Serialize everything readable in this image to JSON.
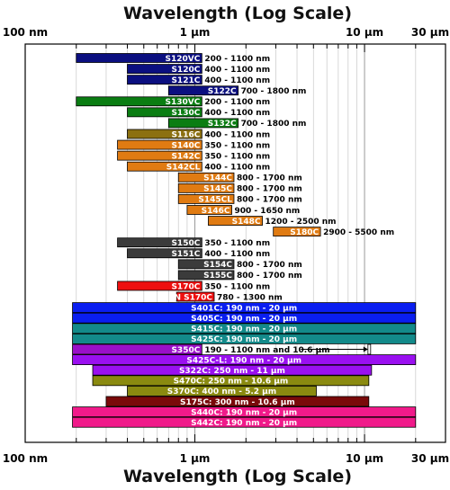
{
  "chart_data": {
    "type": "bar",
    "orientation": "horizontal-range",
    "title": "Wavelength (Log Scale)",
    "xlabel": "Wavelength (Log Scale)",
    "x_scale": "log",
    "x_unit": "nm",
    "xlim": [
      100,
      30000
    ],
    "ticks": [
      {
        "value": 100,
        "label": "100 nm"
      },
      {
        "value": 1000,
        "label": "1 µm"
      },
      {
        "value": 10000,
        "label": "10 µm"
      },
      {
        "value": 30000,
        "label": "30 µm"
      }
    ],
    "bars": [
      {
        "name": "S120VC",
        "range_label": "200 - 1100 nm",
        "min": 200,
        "max": 1100,
        "color": "#0b0f80",
        "label_inside": false
      },
      {
        "name": "S120C",
        "range_label": "400 - 1100 nm",
        "min": 400,
        "max": 1100,
        "color": "#0b0f80",
        "label_inside": false
      },
      {
        "name": "S121C",
        "range_label": "400 - 1100 nm",
        "min": 400,
        "max": 1100,
        "color": "#0b0f80",
        "label_inside": false
      },
      {
        "name": "S122C",
        "range_label": "700 - 1800 nm",
        "min": 700,
        "max": 1800,
        "color": "#0b0f80",
        "label_inside": false
      },
      {
        "name": "S130VC",
        "range_label": "200 - 1100 nm",
        "min": 200,
        "max": 1100,
        "color": "#0a7d12",
        "label_inside": false
      },
      {
        "name": "S130C",
        "range_label": "400 - 1100 nm",
        "min": 400,
        "max": 1100,
        "color": "#0a7d12",
        "label_inside": false
      },
      {
        "name": "S132C",
        "range_label": "700 - 1800 nm",
        "min": 700,
        "max": 1800,
        "color": "#0a7d12",
        "label_inside": false
      },
      {
        "name": "S116C",
        "range_label": "400 - 1100 nm",
        "min": 400,
        "max": 1100,
        "color": "#8c7010",
        "label_inside": false
      },
      {
        "name": "S140C",
        "range_label": "350 - 1100 nm",
        "min": 350,
        "max": 1100,
        "color": "#e07b12",
        "label_inside": false
      },
      {
        "name": "S142C",
        "range_label": "350 - 1100 nm",
        "min": 350,
        "max": 1100,
        "color": "#e07b12",
        "label_inside": false
      },
      {
        "name": "S142CL",
        "range_label": "400 - 1100 nm",
        "min": 400,
        "max": 1100,
        "color": "#e07b12",
        "label_inside": false
      },
      {
        "name": "S144C",
        "range_label": "800 - 1700 nm",
        "min": 800,
        "max": 1700,
        "color": "#e07b12",
        "label_inside": false
      },
      {
        "name": "S145C",
        "range_label": "800 - 1700 nm",
        "min": 800,
        "max": 1700,
        "color": "#e07b12",
        "label_inside": false
      },
      {
        "name": "S145CL",
        "range_label": "800 - 1700 nm",
        "min": 800,
        "max": 1700,
        "color": "#e07b12",
        "label_inside": false
      },
      {
        "name": "S146C",
        "range_label": "900 - 1650 nm",
        "min": 900,
        "max": 1650,
        "color": "#e07b12",
        "label_inside": false
      },
      {
        "name": "S148C",
        "range_label": "1200 - 2500 nm",
        "min": 1200,
        "max": 2500,
        "color": "#e07b12",
        "label_inside": false
      },
      {
        "name": "S180C",
        "range_label": "2900 - 5500 nm",
        "min": 2900,
        "max": 5500,
        "color": "#e07b12",
        "label_inside": false
      },
      {
        "name": "S150C",
        "range_label": "350 - 1100 nm",
        "min": 350,
        "max": 1100,
        "color": "#3b3b3b",
        "label_inside": false
      },
      {
        "name": "S151C",
        "range_label": "400 - 1100 nm",
        "min": 400,
        "max": 1100,
        "color": "#3b3b3b",
        "label_inside": false
      },
      {
        "name": "S154C",
        "range_label": "800 - 1700 nm",
        "min": 800,
        "max": 1700,
        "color": "#3b3b3b",
        "label_inside": false
      },
      {
        "name": "S155C",
        "range_label": "800 - 1700 nm",
        "min": 800,
        "max": 1700,
        "color": "#3b3b3b",
        "label_inside": false
      },
      {
        "name": "S170C",
        "range_label": "350 - 1100 nm",
        "min": 350,
        "max": 1100,
        "color": "#ee1010",
        "label_inside": false
      },
      {
        "name": "N S170C",
        "range_label": "780 - 1300 nm",
        "min": 780,
        "max": 1300,
        "color": "#ee1010",
        "label_inside": false
      },
      {
        "name": "S401C",
        "range_label": "S401C: 190 nm - 20 µm",
        "min": 190,
        "max": 20000,
        "color": "#0a1ef0",
        "label_inside": true
      },
      {
        "name": "S405C",
        "range_label": "S405C: 190 nm - 20 µm",
        "min": 190,
        "max": 20000,
        "color": "#0a1ef0",
        "label_inside": true
      },
      {
        "name": "S415C",
        "range_label": "S415C: 190 nm - 20 µm",
        "min": 190,
        "max": 20000,
        "color": "#138a8a",
        "label_inside": true
      },
      {
        "name": "S425C",
        "range_label": "S425C: 190 nm - 20 µm",
        "min": 190,
        "max": 20000,
        "color": "#138a8a",
        "label_inside": true
      },
      {
        "name": "S350C",
        "range_label": "190 - 1100 nm and 10.6 µm",
        "min": 190,
        "max": 1100,
        "color": "#9a10c8",
        "label_inside": false,
        "extra_point": 10600
      },
      {
        "name": "S425C-L",
        "range_label": "S425C-L: 190 nm - 20 µm",
        "min": 190,
        "max": 20000,
        "color": "#9a10f0",
        "label_inside": true
      },
      {
        "name": "S322C",
        "range_label": "S322C: 250 nm - 11 µm",
        "min": 250,
        "max": 11000,
        "color": "#9a10f0",
        "label_inside": true
      },
      {
        "name": "S470C",
        "range_label": "S470C: 250 nm - 10.6 µm",
        "min": 250,
        "max": 10600,
        "color": "#8a8a10",
        "label_inside": true
      },
      {
        "name": "S370C",
        "range_label": "S370C: 400 nm - 5.2 µm",
        "min": 400,
        "max": 5200,
        "color": "#8a8a10",
        "label_inside": true
      },
      {
        "name": "S175C",
        "range_label": "S175C: 300 nm - 10.6 µm",
        "min": 300,
        "max": 10600,
        "color": "#7a0a0a",
        "label_inside": true
      },
      {
        "name": "S440C",
        "range_label": "S440C: 190 nm - 20 µm",
        "min": 190,
        "max": 20000,
        "color": "#f01a8a",
        "label_inside": true
      },
      {
        "name": "S442C",
        "range_label": "S442C: 190 nm - 20 µm",
        "min": 190,
        "max": 20000,
        "color": "#f01a8a",
        "label_inside": true
      }
    ],
    "grid": true
  }
}
